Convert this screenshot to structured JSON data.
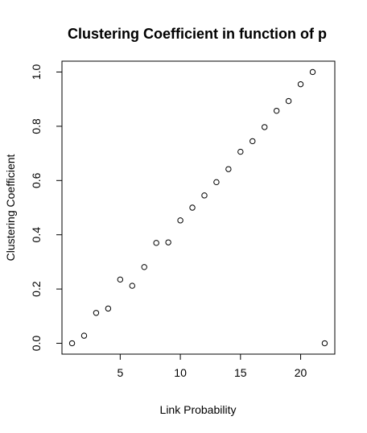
{
  "chart_data": {
    "type": "scatter",
    "title": "Clustering Coefficient in function of p",
    "xlabel": "Link Probability",
    "ylabel": "Clustering Coefficient",
    "xlim": [
      0.16,
      22.84
    ],
    "ylim": [
      -0.04,
      1.04
    ],
    "x_ticks": [
      5,
      10,
      15,
      20
    ],
    "y_ticks": [
      0.0,
      0.2,
      0.4,
      0.6,
      0.8,
      1.0
    ],
    "x_tick_labels": [
      "5",
      "10",
      "15",
      "20"
    ],
    "y_tick_labels": [
      "0.0",
      "0.2",
      "0.4",
      "0.6",
      "0.8",
      "1.0"
    ],
    "grid": false,
    "x": [
      1,
      2,
      3,
      4,
      5,
      6,
      7,
      8,
      9,
      10,
      11,
      12,
      13,
      14,
      15,
      16,
      17,
      18,
      19,
      20,
      21,
      22
    ],
    "y": [
      0.0,
      0.028,
      0.112,
      0.128,
      0.235,
      0.212,
      0.281,
      0.37,
      0.372,
      0.453,
      0.5,
      0.545,
      0.594,
      0.642,
      0.706,
      0.745,
      0.797,
      0.857,
      0.893,
      0.955,
      1.0,
      0.0
    ],
    "marker_color": "#000000"
  }
}
